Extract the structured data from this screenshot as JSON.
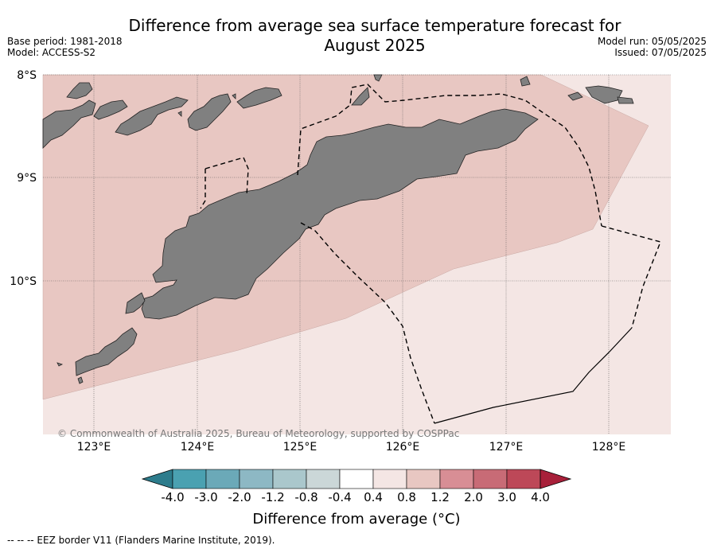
{
  "title": {
    "line1": "Difference from average sea surface temperature forecast for",
    "line2": "August 2025"
  },
  "meta": {
    "base_period": "Base period: 1981-2018",
    "model": "Model: ACCESS-S2",
    "model_run": "Model run: 05/05/2025",
    "issued": "Issued: 07/05/2025"
  },
  "map": {
    "lon_ticks": [
      "123°E",
      "124°E",
      "125°E",
      "126°E",
      "127°E",
      "128°E"
    ],
    "lat_ticks": [
      "8°S",
      "9°S",
      "10°S"
    ],
    "copyright": "© Commonwealth of Australia 2025, Bureau of Meteorology, supported by COSPPac",
    "colors": {
      "land": "#808080",
      "anomaly_0_4_to_0_8": "#f4e6e4",
      "anomaly_0_8_to_1_2": "#e8c7c2"
    }
  },
  "colorbar": {
    "label": "Difference from average (°C)",
    "ticks": [
      "-4.0",
      "-3.0",
      "-2.0",
      "-1.2",
      "-0.8",
      "-0.4",
      "0.4",
      "0.8",
      "1.2",
      "2.0",
      "3.0",
      "4.0"
    ],
    "colors": [
      "#2d7c8c",
      "#4aa1b1",
      "#6ba9b8",
      "#8db8c4",
      "#aac7cc",
      "#cbd7d8",
      "#ffffff",
      "#f4e6e4",
      "#e8c7c2",
      "#d88e95",
      "#c86b76",
      "#bd4858",
      "#a8203a"
    ]
  },
  "legend_note": "--  --  -- EEZ border V11 (Flanders Marine Institute, 2019)."
}
